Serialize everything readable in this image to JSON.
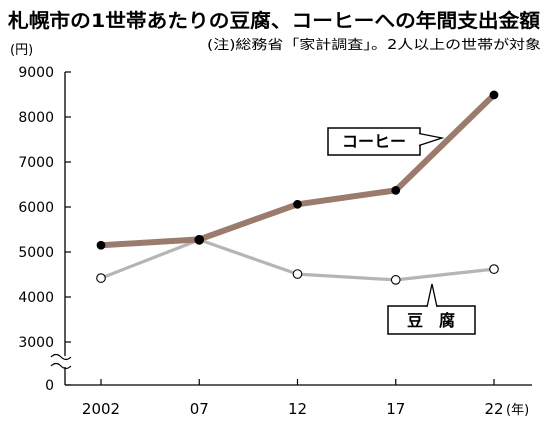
{
  "chart_data": {
    "type": "line",
    "title": "札幌市の1世帯あたりの豆腐、コーヒーへの年間支出金額",
    "subtitle": "(注)総務省「家計調査」。2人以上の世帯が対象",
    "ylabel": "(円)",
    "xlabel": "(年)",
    "x": [
      2002,
      2007,
      2012,
      2017,
      2022
    ],
    "x_tick_labels": [
      "2002",
      "07",
      "12",
      "17",
      "22"
    ],
    "y_ticks": [
      9000,
      8000,
      7000,
      6000,
      5000,
      4000,
      3000,
      0
    ],
    "ylim": [
      0,
      9000
    ],
    "y_axis_break": [
      0,
      3000
    ],
    "grid": false,
    "series": [
      {
        "name": "コーヒー",
        "values": [
          5150,
          5280,
          6060,
          6370,
          8490
        ],
        "color": "#9b7b6b",
        "marker_fill": "#000000"
      },
      {
        "name": "豆　腐",
        "values": [
          4420,
          5270,
          4510,
          4380,
          4620
        ],
        "color": "#b5b5b5",
        "marker_fill": "#ffffff"
      }
    ]
  }
}
